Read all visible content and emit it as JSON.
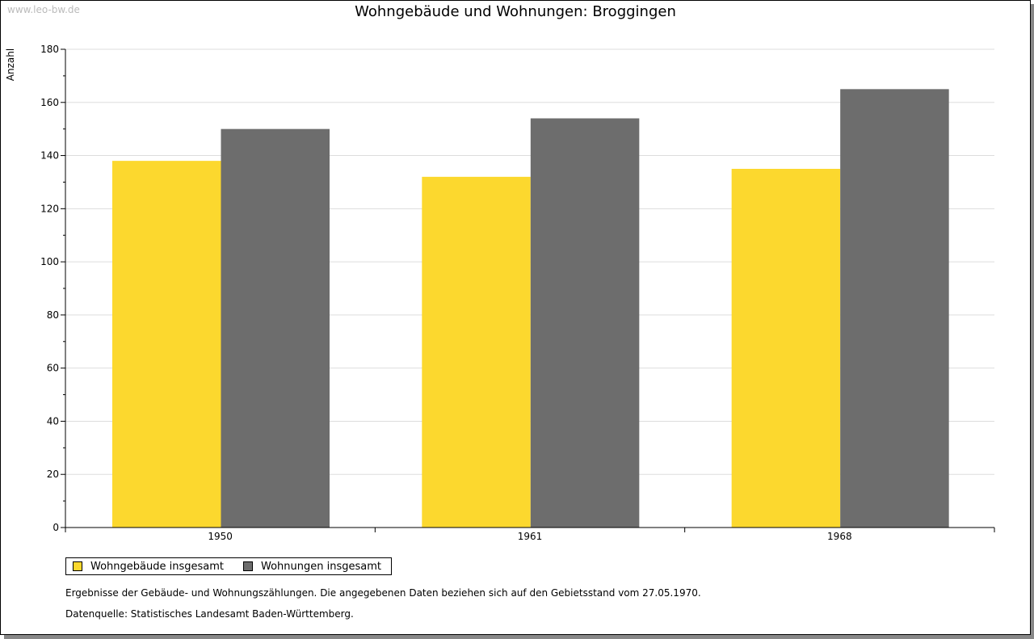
{
  "watermark": "www.leo-bw.de",
  "chart_data": {
    "type": "bar",
    "title": "Wohngebäude und Wohnungen: Broggingen",
    "xlabel": "",
    "ylabel": "Anzahl",
    "ylim": [
      0,
      180
    ],
    "yticks": [
      0,
      20,
      40,
      60,
      80,
      100,
      120,
      140,
      160,
      180
    ],
    "grid": true,
    "categories": [
      "1950",
      "1961",
      "1968"
    ],
    "series": [
      {
        "name": "Wohngebäude insgesamt",
        "color": "#fcd82e",
        "values": [
          138,
          132,
          135
        ]
      },
      {
        "name": "Wohnungen insgesamt",
        "color": "#6d6d6d",
        "values": [
          150,
          154,
          165
        ]
      }
    ],
    "legend_position": "bottom-left"
  },
  "notes": [
    "Ergebnisse der Gebäude- und Wohnungszählungen. Die angegebenen Daten beziehen sich auf den Gebietsstand vom 27.05.1970.",
    "Datenquelle: Statistisches Landesamt Baden-Württemberg."
  ]
}
